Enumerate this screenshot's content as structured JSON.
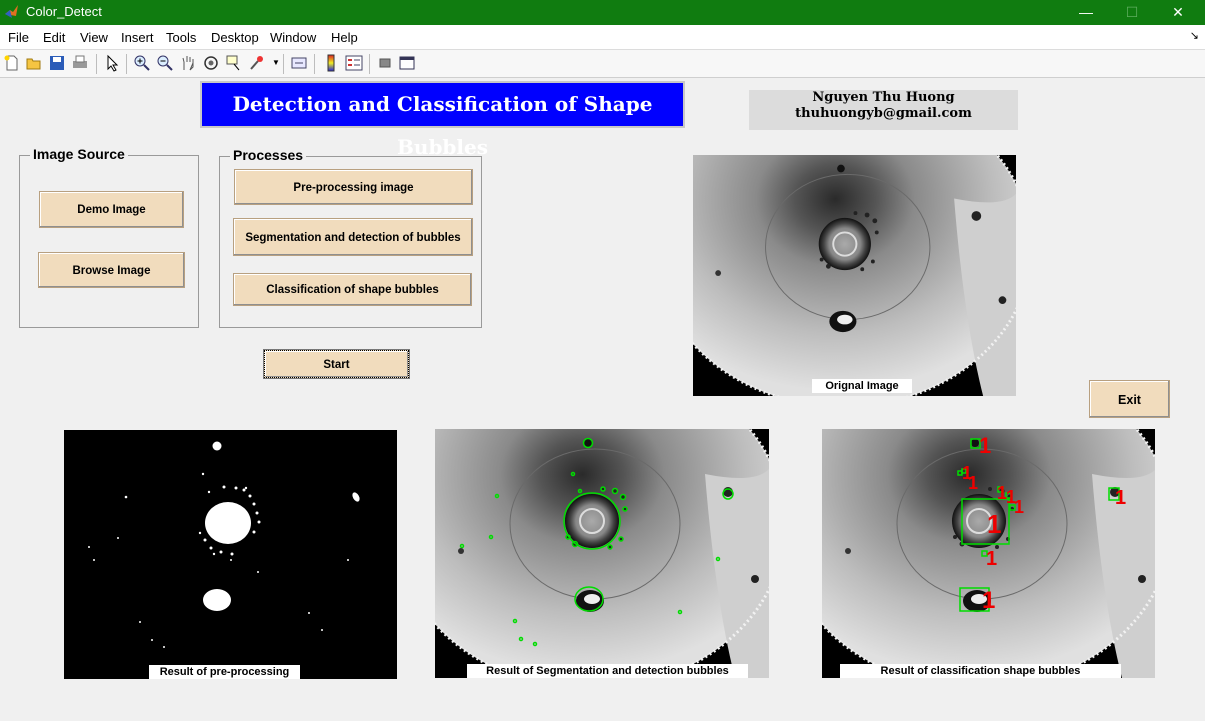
{
  "window": {
    "title": "Color_Detect",
    "controls": [
      "—",
      "☐",
      "✕"
    ]
  },
  "menu": [
    "File",
    "Edit",
    "View",
    "Insert",
    "Tools",
    "Desktop",
    "Window",
    "Help"
  ],
  "toolbar_icons": [
    "new-figure-icon",
    "open-icon",
    "save-icon",
    "print-icon",
    "pointer-icon",
    "zoom-in-icon",
    "zoom-out-icon",
    "pan-icon",
    "rotate-icon",
    "data-cursor-icon",
    "brush-icon",
    "link-icon",
    "colorbar-icon",
    "legend-icon",
    "hide-tools-icon",
    "dock-icon"
  ],
  "header": {
    "title": "Detection and Classification of Shape Bubbles",
    "author_name": "Nguyen Thu Huong",
    "author_email": "thuhuongyb@gmail.com"
  },
  "image_source": {
    "label": "Image Source",
    "demo_button": "Demo Image",
    "browse_button": "Browse Image"
  },
  "processes": {
    "label": "Processes",
    "preprocess_button": "Pre-processing image",
    "segmentation_button": "Segmentation and detection of bubbles",
    "classification_button": "Classification of shape bubbles"
  },
  "start_button": "Start",
  "exit_button": "Exit",
  "images": {
    "original_caption": "Orignal Image",
    "preprocess_caption": "Result of pre-processing",
    "segmentation_caption": "Result of Segmentation and detection bubbles",
    "classification_caption": "Result of classification shape bubbles"
  },
  "colors": {
    "title_bar": "#107c10",
    "header_blue": "#0000ff",
    "button": "#f1dcbd",
    "detect_green": "#00dd00",
    "label_red": "#ee0000"
  }
}
